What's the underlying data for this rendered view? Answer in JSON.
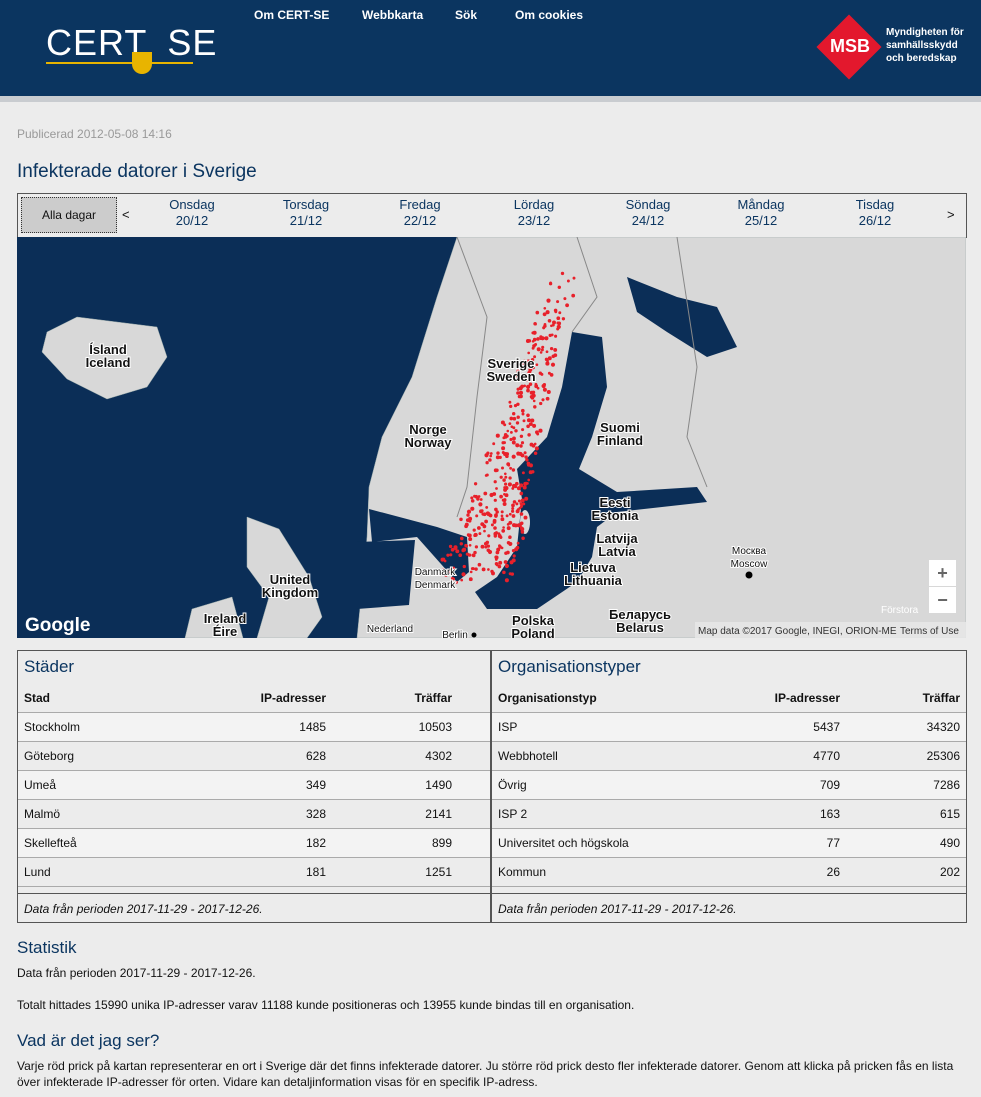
{
  "header": {
    "logo": {
      "left": "CERT",
      "right": "SE"
    },
    "nav": [
      "Om CERT-SE",
      "Webbkarta",
      "Sök",
      "Om cookies"
    ],
    "msb": {
      "badge": "MSB",
      "lines": [
        "Myndigheten för",
        "samhällsskydd",
        "och beredskap"
      ]
    }
  },
  "published": "Publicerad 2012-05-08 14:16",
  "title": "Infekterade datorer i Sverige",
  "days": {
    "all": "Alla dagar",
    "prev": "<",
    "next": ">",
    "items": [
      {
        "weekday": "Onsdag",
        "date": "20/12"
      },
      {
        "weekday": "Torsdag",
        "date": "21/12"
      },
      {
        "weekday": "Fredag",
        "date": "22/12"
      },
      {
        "weekday": "Lördag",
        "date": "23/12"
      },
      {
        "weekday": "Söndag",
        "date": "24/12"
      },
      {
        "weekday": "Måndag",
        "date": "25/12"
      },
      {
        "weekday": "Tisdag",
        "date": "26/12"
      }
    ]
  },
  "map": {
    "labels": [
      {
        "lines": [
          "Ísland",
          "Iceland"
        ]
      },
      {
        "lines": [
          "Sverige",
          "Sweden"
        ]
      },
      {
        "lines": [
          "Norge",
          "Norway"
        ]
      },
      {
        "lines": [
          "Suomi",
          "Finland"
        ]
      },
      {
        "lines": [
          "Eesti",
          "Estonia"
        ]
      },
      {
        "lines": [
          "Latvija",
          "Latvia"
        ]
      },
      {
        "lines": [
          "Lietuva",
          "Lithuania"
        ]
      },
      {
        "lines": [
          "Москва",
          "Moscow"
        ]
      },
      {
        "lines": [
          "United",
          "Kingdom"
        ]
      },
      {
        "lines": [
          "Danmark",
          "Denmark"
        ]
      },
      {
        "lines": [
          "Ireland",
          "Éire"
        ]
      },
      {
        "lines": [
          "Nederland"
        ]
      },
      {
        "lines": [
          "Polska",
          "Poland"
        ]
      },
      {
        "lines": [
          "Беларусь",
          "Belarus"
        ]
      },
      {
        "lines": [
          "Berlin"
        ]
      }
    ],
    "google": "Google",
    "attribution": "Map data ©2017 Google, INEGI, ORION-ME",
    "terms": "Terms of Use",
    "zoom_in": "+",
    "zoom_out": "−",
    "enlarge": "Förstora"
  },
  "tables": [
    {
      "title": "Städer",
      "headers": [
        "Stad",
        "IP-adresser",
        "Träffar"
      ],
      "rows": [
        [
          "Stockholm",
          1485,
          10503
        ],
        [
          "Göteborg",
          628,
          4302
        ],
        [
          "Umeå",
          349,
          1490
        ],
        [
          "Malmö",
          328,
          2141
        ],
        [
          "Skellefteå",
          182,
          899
        ],
        [
          "Lund",
          181,
          1251
        ]
      ],
      "footer": "Data från perioden 2017-11-29 - 2017-12-26."
    },
    {
      "title": "Organisationstyper",
      "headers": [
        "Organisationstyp",
        "IP-adresser",
        "Träffar"
      ],
      "rows": [
        [
          "ISP",
          5437,
          34320
        ],
        [
          "Webbhotell",
          4770,
          25306
        ],
        [
          "Övrig",
          709,
          7286
        ],
        [
          "ISP 2",
          163,
          615
        ],
        [
          "Universitet och högskola",
          77,
          490
        ],
        [
          "Kommun",
          26,
          202
        ]
      ],
      "footer": "Data från perioden 2017-11-29 - 2017-12-26."
    }
  ],
  "stats": {
    "heading": "Statistik",
    "period": "Data från perioden 2017-11-29 - 2017-12-26.",
    "total": "Totalt hittades 15990 unika IP-adresser varav 11188 kunde positioneras och 13955 kunde bindas till en organisation."
  },
  "about": {
    "heading": "Vad är det jag ser?",
    "text": "Varje röd prick på kartan representerar en ort i Sverige där det finns infekterade datorer. Ju större röd prick desto fler infekterade datorer. Genom att klicka på pricken fås en lista över infekterade IP-adresser för orten. Vidare kan detaljinformation visas för en specifik IP-adress."
  }
}
